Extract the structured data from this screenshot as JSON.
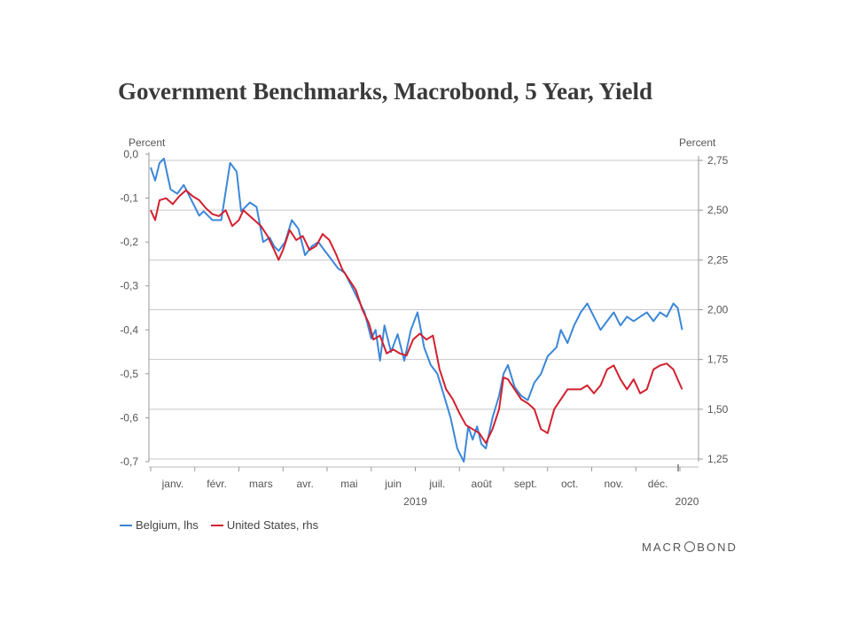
{
  "chart_data": {
    "type": "line",
    "title": "Government Benchmarks, Macrobond, 5 Year, Yield",
    "left_axis": {
      "label": "Percent",
      "ticks": [
        "0,0",
        "-0,1",
        "-0,2",
        "-0,3",
        "-0,4",
        "-0,5",
        "-0,6",
        "-0,7"
      ],
      "ylim": [
        -0.7,
        0.0
      ]
    },
    "right_axis": {
      "label": "Percent",
      "ticks": [
        "2,75",
        "2,50",
        "2,25",
        "2,00",
        "1,75",
        "1,50",
        "1,25"
      ],
      "ylim": [
        1.25,
        2.75
      ]
    },
    "x_months": [
      "janv.",
      "févr.",
      "mars",
      "avr.",
      "mai",
      "juin",
      "juil.",
      "août",
      "sept.",
      "oct.",
      "nov.",
      "déc."
    ],
    "x_year_labels": [
      "2019",
      "2020"
    ],
    "grid": true,
    "legend_position": "bottom-left",
    "series": [
      {
        "name": "Belgium, lhs",
        "axis": "left",
        "color": "#3c87d8",
        "x": [
          0,
          0.1,
          0.2,
          0.3,
          0.45,
          0.6,
          0.75,
          0.9,
          1.0,
          1.1,
          1.2,
          1.4,
          1.6,
          1.8,
          1.95,
          2.05,
          2.15,
          2.25,
          2.4,
          2.55,
          2.7,
          2.8,
          2.9,
          3.05,
          3.2,
          3.35,
          3.5,
          3.65,
          3.8,
          3.95,
          4.1,
          4.25,
          4.4,
          4.55,
          4.7,
          4.85,
          5.0,
          5.1,
          5.2,
          5.3,
          5.45,
          5.6,
          5.75,
          5.9,
          6.05,
          6.2,
          6.35,
          6.5,
          6.65,
          6.8,
          6.95,
          7.1,
          7.2,
          7.3,
          7.4,
          7.5,
          7.6,
          7.75,
          7.9,
          8.0,
          8.1,
          8.25,
          8.4,
          8.55,
          8.7,
          8.85,
          9.0,
          9.1,
          9.2,
          9.3,
          9.45,
          9.6,
          9.75,
          9.9,
          10.05,
          10.2,
          10.35,
          10.5,
          10.65,
          10.8,
          10.95,
          11.1,
          11.25,
          11.4,
          11.55,
          11.7,
          11.85,
          11.95,
          12.05
        ],
        "values": [
          -0.03,
          -0.06,
          -0.02,
          -0.01,
          -0.08,
          -0.09,
          -0.07,
          -0.1,
          -0.12,
          -0.14,
          -0.13,
          -0.15,
          -0.15,
          -0.02,
          -0.04,
          -0.13,
          -0.12,
          -0.11,
          -0.12,
          -0.2,
          -0.19,
          -0.21,
          -0.22,
          -0.2,
          -0.15,
          -0.17,
          -0.23,
          -0.21,
          -0.2,
          -0.22,
          -0.24,
          -0.26,
          -0.27,
          -0.3,
          -0.33,
          -0.36,
          -0.42,
          -0.4,
          -0.47,
          -0.39,
          -0.45,
          -0.41,
          -0.47,
          -0.4,
          -0.36,
          -0.44,
          -0.48,
          -0.5,
          -0.55,
          -0.6,
          -0.67,
          -0.7,
          -0.62,
          -0.65,
          -0.62,
          -0.66,
          -0.67,
          -0.6,
          -0.55,
          -0.5,
          -0.48,
          -0.53,
          -0.55,
          -0.56,
          -0.52,
          -0.5,
          -0.46,
          -0.45,
          -0.44,
          -0.4,
          -0.43,
          -0.39,
          -0.36,
          -0.34,
          -0.37,
          -0.4,
          -0.38,
          -0.36,
          -0.39,
          -0.37,
          -0.38,
          -0.37,
          -0.36,
          -0.38,
          -0.36,
          -0.37,
          -0.34,
          -0.35,
          -0.4
        ]
      },
      {
        "name": "United States, rhs",
        "axis": "right",
        "color": "#d2202f",
        "x": [
          0,
          0.1,
          0.2,
          0.35,
          0.5,
          0.65,
          0.8,
          0.95,
          1.1,
          1.25,
          1.4,
          1.55,
          1.7,
          1.85,
          2.0,
          2.1,
          2.2,
          2.35,
          2.5,
          2.65,
          2.8,
          2.9,
          3.0,
          3.15,
          3.3,
          3.45,
          3.6,
          3.75,
          3.9,
          4.05,
          4.2,
          4.35,
          4.5,
          4.65,
          4.8,
          4.95,
          5.05,
          5.2,
          5.35,
          5.5,
          5.65,
          5.8,
          5.95,
          6.1,
          6.25,
          6.4,
          6.55,
          6.7,
          6.85,
          7.0,
          7.15,
          7.3,
          7.45,
          7.6,
          7.75,
          7.9,
          8.0,
          8.1,
          8.25,
          8.4,
          8.55,
          8.7,
          8.85,
          9.0,
          9.15,
          9.3,
          9.45,
          9.6,
          9.75,
          9.9,
          10.05,
          10.2,
          10.35,
          10.5,
          10.65,
          10.8,
          10.95,
          11.1,
          11.25,
          11.4,
          11.55,
          11.7,
          11.85,
          11.95,
          12.05
        ],
        "values": [
          2.5,
          2.45,
          2.55,
          2.56,
          2.53,
          2.57,
          2.6,
          2.57,
          2.55,
          2.51,
          2.48,
          2.47,
          2.5,
          2.42,
          2.45,
          2.5,
          2.48,
          2.45,
          2.42,
          2.37,
          2.3,
          2.25,
          2.3,
          2.4,
          2.35,
          2.37,
          2.3,
          2.32,
          2.38,
          2.35,
          2.28,
          2.2,
          2.15,
          2.1,
          2.0,
          1.93,
          1.85,
          1.87,
          1.78,
          1.8,
          1.78,
          1.77,
          1.85,
          1.88,
          1.85,
          1.87,
          1.7,
          1.6,
          1.55,
          1.48,
          1.42,
          1.4,
          1.38,
          1.33,
          1.4,
          1.5,
          1.66,
          1.65,
          1.6,
          1.55,
          1.53,
          1.5,
          1.4,
          1.38,
          1.5,
          1.55,
          1.6,
          1.6,
          1.6,
          1.62,
          1.58,
          1.62,
          1.7,
          1.72,
          1.65,
          1.6,
          1.65,
          1.58,
          1.6,
          1.7,
          1.72,
          1.73,
          1.7,
          1.65,
          1.6
        ]
      }
    ]
  },
  "footer": {
    "brand_pre": "MACR",
    "brand_post": "BOND"
  }
}
